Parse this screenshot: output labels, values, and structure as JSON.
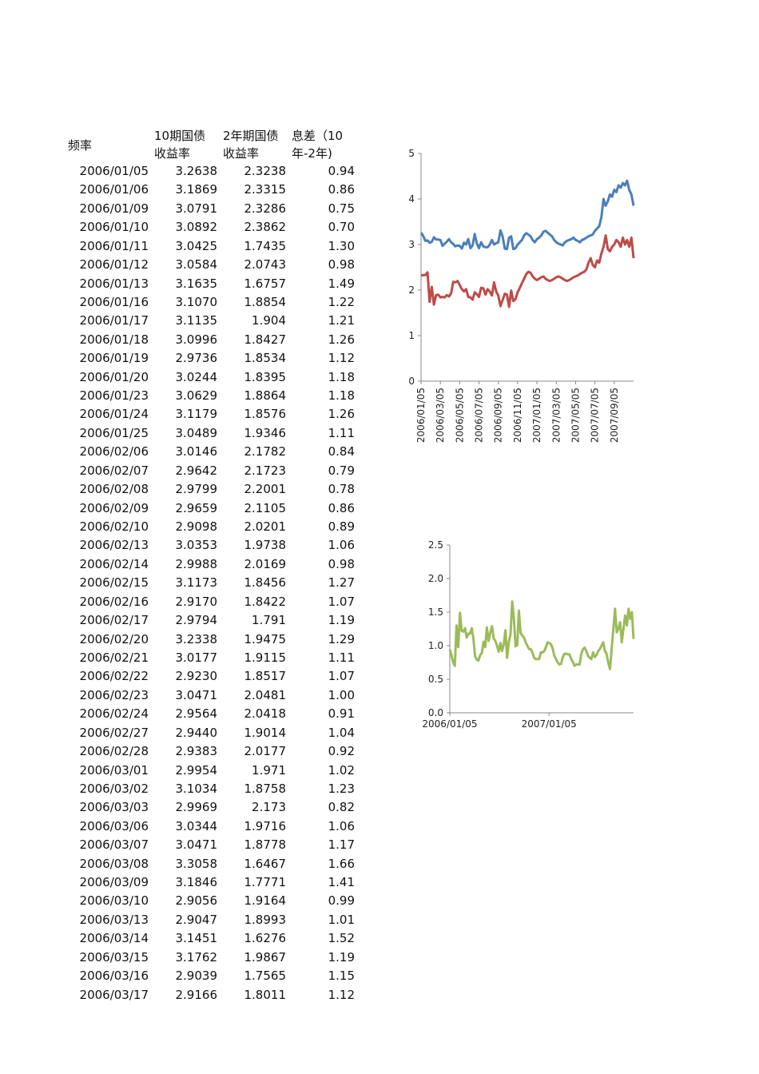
{
  "table": {
    "headers": {
      "freq": "频率",
      "ten_y_line1": "10期国债",
      "ten_y_line2": "收益率",
      "two_y_line1": "2年期国债",
      "two_y_line2": "收益率",
      "spread_line1": "息差（10",
      "spread_line2": "年-2年)"
    },
    "rows": [
      [
        "2006/01/05",
        "3.2638",
        "2.3238",
        "0.94"
      ],
      [
        "2006/01/06",
        "3.1869",
        "2.3315",
        "0.86"
      ],
      [
        "2006/01/09",
        "3.0791",
        "2.3286",
        "0.75"
      ],
      [
        "2006/01/10",
        "3.0892",
        "2.3862",
        "0.70"
      ],
      [
        "2006/01/11",
        "3.0425",
        "1.7435",
        "1.30"
      ],
      [
        "2006/01/12",
        "3.0584",
        "2.0743",
        "0.98"
      ],
      [
        "2006/01/13",
        "3.1635",
        "1.6757",
        "1.49"
      ],
      [
        "2006/01/16",
        "3.1070",
        "1.8854",
        "1.22"
      ],
      [
        "2006/01/17",
        "3.1135",
        "1.904",
        "1.21"
      ],
      [
        "2006/01/18",
        "3.0996",
        "1.8427",
        "1.26"
      ],
      [
        "2006/01/19",
        "2.9736",
        "1.8534",
        "1.12"
      ],
      [
        "2006/01/20",
        "3.0244",
        "1.8395",
        "1.18"
      ],
      [
        "2006/01/23",
        "3.0629",
        "1.8864",
        "1.18"
      ],
      [
        "2006/01/24",
        "3.1179",
        "1.8576",
        "1.26"
      ],
      [
        "2006/01/25",
        "3.0489",
        "1.9346",
        "1.11"
      ],
      [
        "2006/02/06",
        "3.0146",
        "2.1782",
        "0.84"
      ],
      [
        "2006/02/07",
        "2.9642",
        "2.1723",
        "0.79"
      ],
      [
        "2006/02/08",
        "2.9799",
        "2.2001",
        "0.78"
      ],
      [
        "2006/02/09",
        "2.9659",
        "2.1105",
        "0.86"
      ],
      [
        "2006/02/10",
        "2.9098",
        "2.0201",
        "0.89"
      ],
      [
        "2006/02/13",
        "3.0353",
        "1.9738",
        "1.06"
      ],
      [
        "2006/02/14",
        "2.9988",
        "2.0169",
        "0.98"
      ],
      [
        "2006/02/15",
        "3.1173",
        "1.8456",
        "1.27"
      ],
      [
        "2006/02/16",
        "2.9170",
        "1.8422",
        "1.07"
      ],
      [
        "2006/02/17",
        "2.9794",
        "1.791",
        "1.19"
      ],
      [
        "2006/02/20",
        "3.2338",
        "1.9475",
        "1.29"
      ],
      [
        "2006/02/21",
        "3.0177",
        "1.9115",
        "1.11"
      ],
      [
        "2006/02/22",
        "2.9230",
        "1.8517",
        "1.07"
      ],
      [
        "2006/02/23",
        "3.0471",
        "2.0481",
        "1.00"
      ],
      [
        "2006/02/24",
        "2.9564",
        "2.0418",
        "0.91"
      ],
      [
        "2006/02/27",
        "2.9440",
        "1.9014",
        "1.04"
      ],
      [
        "2006/02/28",
        "2.9383",
        "2.0177",
        "0.92"
      ],
      [
        "2006/03/01",
        "2.9954",
        "1.971",
        "1.02"
      ],
      [
        "2006/03/02",
        "3.1034",
        "1.8758",
        "1.23"
      ],
      [
        "2006/03/03",
        "2.9969",
        "2.173",
        "0.82"
      ],
      [
        "2006/03/06",
        "3.0344",
        "1.9716",
        "1.06"
      ],
      [
        "2006/03/07",
        "3.0471",
        "1.8778",
        "1.17"
      ],
      [
        "2006/03/08",
        "3.3058",
        "1.6467",
        "1.66"
      ],
      [
        "2006/03/09",
        "3.1846",
        "1.7771",
        "1.41"
      ],
      [
        "2006/03/10",
        "2.9056",
        "1.9164",
        "0.99"
      ],
      [
        "2006/03/13",
        "2.9047",
        "1.8993",
        "1.01"
      ],
      [
        "2006/03/14",
        "3.1451",
        "1.6276",
        "1.52"
      ],
      [
        "2006/03/15",
        "3.1762",
        "1.9867",
        "1.19"
      ],
      [
        "2006/03/16",
        "2.9039",
        "1.7565",
        "1.15"
      ],
      [
        "2006/03/17",
        "2.9166",
        "1.8011",
        "1.12"
      ]
    ]
  },
  "chart_data": [
    {
      "type": "line",
      "ylim": [
        0,
        5
      ],
      "y_ticks": [
        "0",
        "1",
        "2",
        "3",
        "4",
        "5"
      ],
      "x_tick_labels": [
        "2006/01/05",
        "2006/03/05",
        "2006/05/05",
        "2006/07/05",
        "2006/09/05",
        "2006/11/05",
        "2007/01/05",
        "2007/03/05",
        "2007/05/05",
        "2007/07/05",
        "2007/09/05"
      ],
      "grid": false,
      "legend": "none",
      "series": [
        {
          "color": "#4a7ebb",
          "values": [
            3.26,
            3.19,
            3.08,
            3.09,
            3.04,
            3.06,
            3.16,
            3.11,
            3.11,
            3.1,
            2.97,
            3.02,
            3.06,
            3.12,
            3.05,
            3.01,
            2.96,
            2.98,
            2.97,
            2.91,
            3.04,
            3.0,
            3.12,
            2.92,
            2.98,
            3.23,
            3.02,
            2.92,
            3.05,
            2.96,
            2.94,
            2.94,
            3.0,
            3.1,
            3.0,
            3.03,
            3.05,
            3.31,
            3.18,
            2.91,
            2.9,
            3.15,
            3.18,
            2.9,
            2.92,
            3.0,
            3.05,
            3.1,
            3.2,
            3.25,
            3.22,
            3.18,
            3.1,
            3.05,
            3.12,
            3.15,
            3.2,
            3.28,
            3.3,
            3.26,
            3.22,
            3.18,
            3.1,
            3.05,
            3.02,
            3.0,
            2.98,
            3.05,
            3.08,
            3.1,
            3.12,
            3.15,
            3.1,
            3.08,
            3.05,
            3.1,
            3.12,
            3.15,
            3.18,
            3.2,
            3.22,
            3.3,
            3.35,
            3.4,
            3.6,
            4.0,
            3.85,
            3.95,
            4.1,
            4.05,
            4.2,
            4.15,
            4.3,
            4.25,
            4.35,
            4.3,
            4.4,
            4.2,
            4.1,
            3.85
          ],
          "dates_note": ""
        },
        {
          "color": "#be4b48",
          "values": [
            2.32,
            2.33,
            2.33,
            2.39,
            1.74,
            2.07,
            1.68,
            1.89,
            1.9,
            1.84,
            1.85,
            1.84,
            1.89,
            1.86,
            1.93,
            2.18,
            2.17,
            2.2,
            2.11,
            2.02,
            1.97,
            2.02,
            1.85,
            1.84,
            1.79,
            1.95,
            1.91,
            1.85,
            2.05,
            2.04,
            1.9,
            2.02,
            1.97,
            1.88,
            2.17,
            1.97,
            1.88,
            1.65,
            1.78,
            1.92,
            1.9,
            1.63,
            1.99,
            1.76,
            1.8,
            1.95,
            2.05,
            2.15,
            2.25,
            2.35,
            2.4,
            2.38,
            2.3,
            2.25,
            2.22,
            2.25,
            2.28,
            2.3,
            2.25,
            2.22,
            2.2,
            2.22,
            2.25,
            2.28,
            2.3,
            2.28,
            2.25,
            2.22,
            2.2,
            2.22,
            2.25,
            2.28,
            2.3,
            2.32,
            2.35,
            2.38,
            2.4,
            2.45,
            2.6,
            2.7,
            2.55,
            2.5,
            2.65,
            2.6,
            2.8,
            2.95,
            3.2,
            2.9,
            2.85,
            2.95,
            3.0,
            3.1,
            3.05,
            2.95,
            3.15,
            3.0,
            3.1,
            2.95,
            3.15,
            2.7
          ],
          "dates_note": ""
        }
      ]
    },
    {
      "type": "line",
      "ylim": [
        0,
        2.5
      ],
      "y_ticks": [
        "0.0",
        "0.5",
        "1.0",
        "1.5",
        "2.0",
        "2.5"
      ],
      "x_tick_labels": [
        "2006/01/05",
        "2007/01/05"
      ],
      "grid": false,
      "legend": "none",
      "series": [
        {
          "color": "#9bbb59",
          "values": [
            0.94,
            0.86,
            0.75,
            0.7,
            1.3,
            0.98,
            1.49,
            1.22,
            1.21,
            1.26,
            1.12,
            1.18,
            1.18,
            1.26,
            1.11,
            0.84,
            0.79,
            0.78,
            0.86,
            0.89,
            1.06,
            0.98,
            1.27,
            1.07,
            1.19,
            1.29,
            1.11,
            1.07,
            1.0,
            0.91,
            1.04,
            0.92,
            1.02,
            1.23,
            0.82,
            1.06,
            1.17,
            1.66,
            1.41,
            0.99,
            1.01,
            1.52,
            1.19,
            1.15,
            1.12,
            1.05,
            1.0,
            0.95,
            0.95,
            0.9,
            0.82,
            0.8,
            0.8,
            0.8,
            0.9,
            0.9,
            0.92,
            0.98,
            1.05,
            1.04,
            1.02,
            0.96,
            0.85,
            0.8,
            0.75,
            0.72,
            0.73,
            0.83,
            0.88,
            0.88,
            0.87,
            0.87,
            0.8,
            0.76,
            0.7,
            0.72,
            0.72,
            0.72,
            0.88,
            0.95,
            0.97,
            0.92,
            0.85,
            0.82,
            0.8,
            0.9,
            0.83,
            0.86,
            0.92,
            0.95,
            1.0,
            1.05,
            0.92,
            0.88,
            0.75,
            0.65,
            0.95,
            1.25,
            1.55,
            1.2,
            1.25,
            1.35,
            1.05,
            1.25,
            1.45,
            1.3,
            1.55,
            1.4,
            1.5,
            1.1
          ],
          "dates_note": ""
        }
      ]
    }
  ]
}
